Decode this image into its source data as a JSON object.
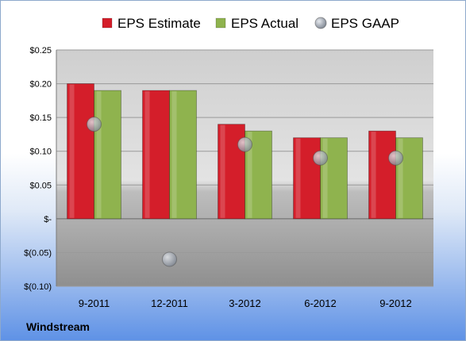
{
  "chart_data": {
    "type": "bar",
    "categories": [
      "9-2011",
      "12-2011",
      "3-2012",
      "6-2012",
      "9-2012"
    ],
    "series": [
      {
        "name": "EPS Estimate",
        "values": [
          0.2,
          0.19,
          0.14,
          0.12,
          0.13
        ],
        "color": "#d41e2a"
      },
      {
        "name": "EPS Actual",
        "values": [
          0.19,
          0.19,
          0.13,
          0.12,
          0.12
        ],
        "color": "#8fb34e"
      },
      {
        "name": "EPS GAAP",
        "values": [
          0.14,
          -0.06,
          0.11,
          0.09,
          0.09
        ],
        "color": "#aab1bb",
        "style": "marker"
      }
    ],
    "ylim": [
      -0.1,
      0.25
    ],
    "yticks": [
      {
        "value": 0.25,
        "label": "$0.25"
      },
      {
        "value": 0.2,
        "label": "$0.20"
      },
      {
        "value": 0.15,
        "label": "$0.15"
      },
      {
        "value": 0.1,
        "label": "$0.10"
      },
      {
        "value": 0.05,
        "label": "$0.05"
      },
      {
        "value": 0.0,
        "label": "$-"
      },
      {
        "value": -0.05,
        "label": "$(0.05)"
      },
      {
        "value": -0.1,
        "label": "$(0.10)"
      }
    ],
    "grid": true,
    "legend_position": "top"
  },
  "footer": {
    "company": "Windstream"
  }
}
